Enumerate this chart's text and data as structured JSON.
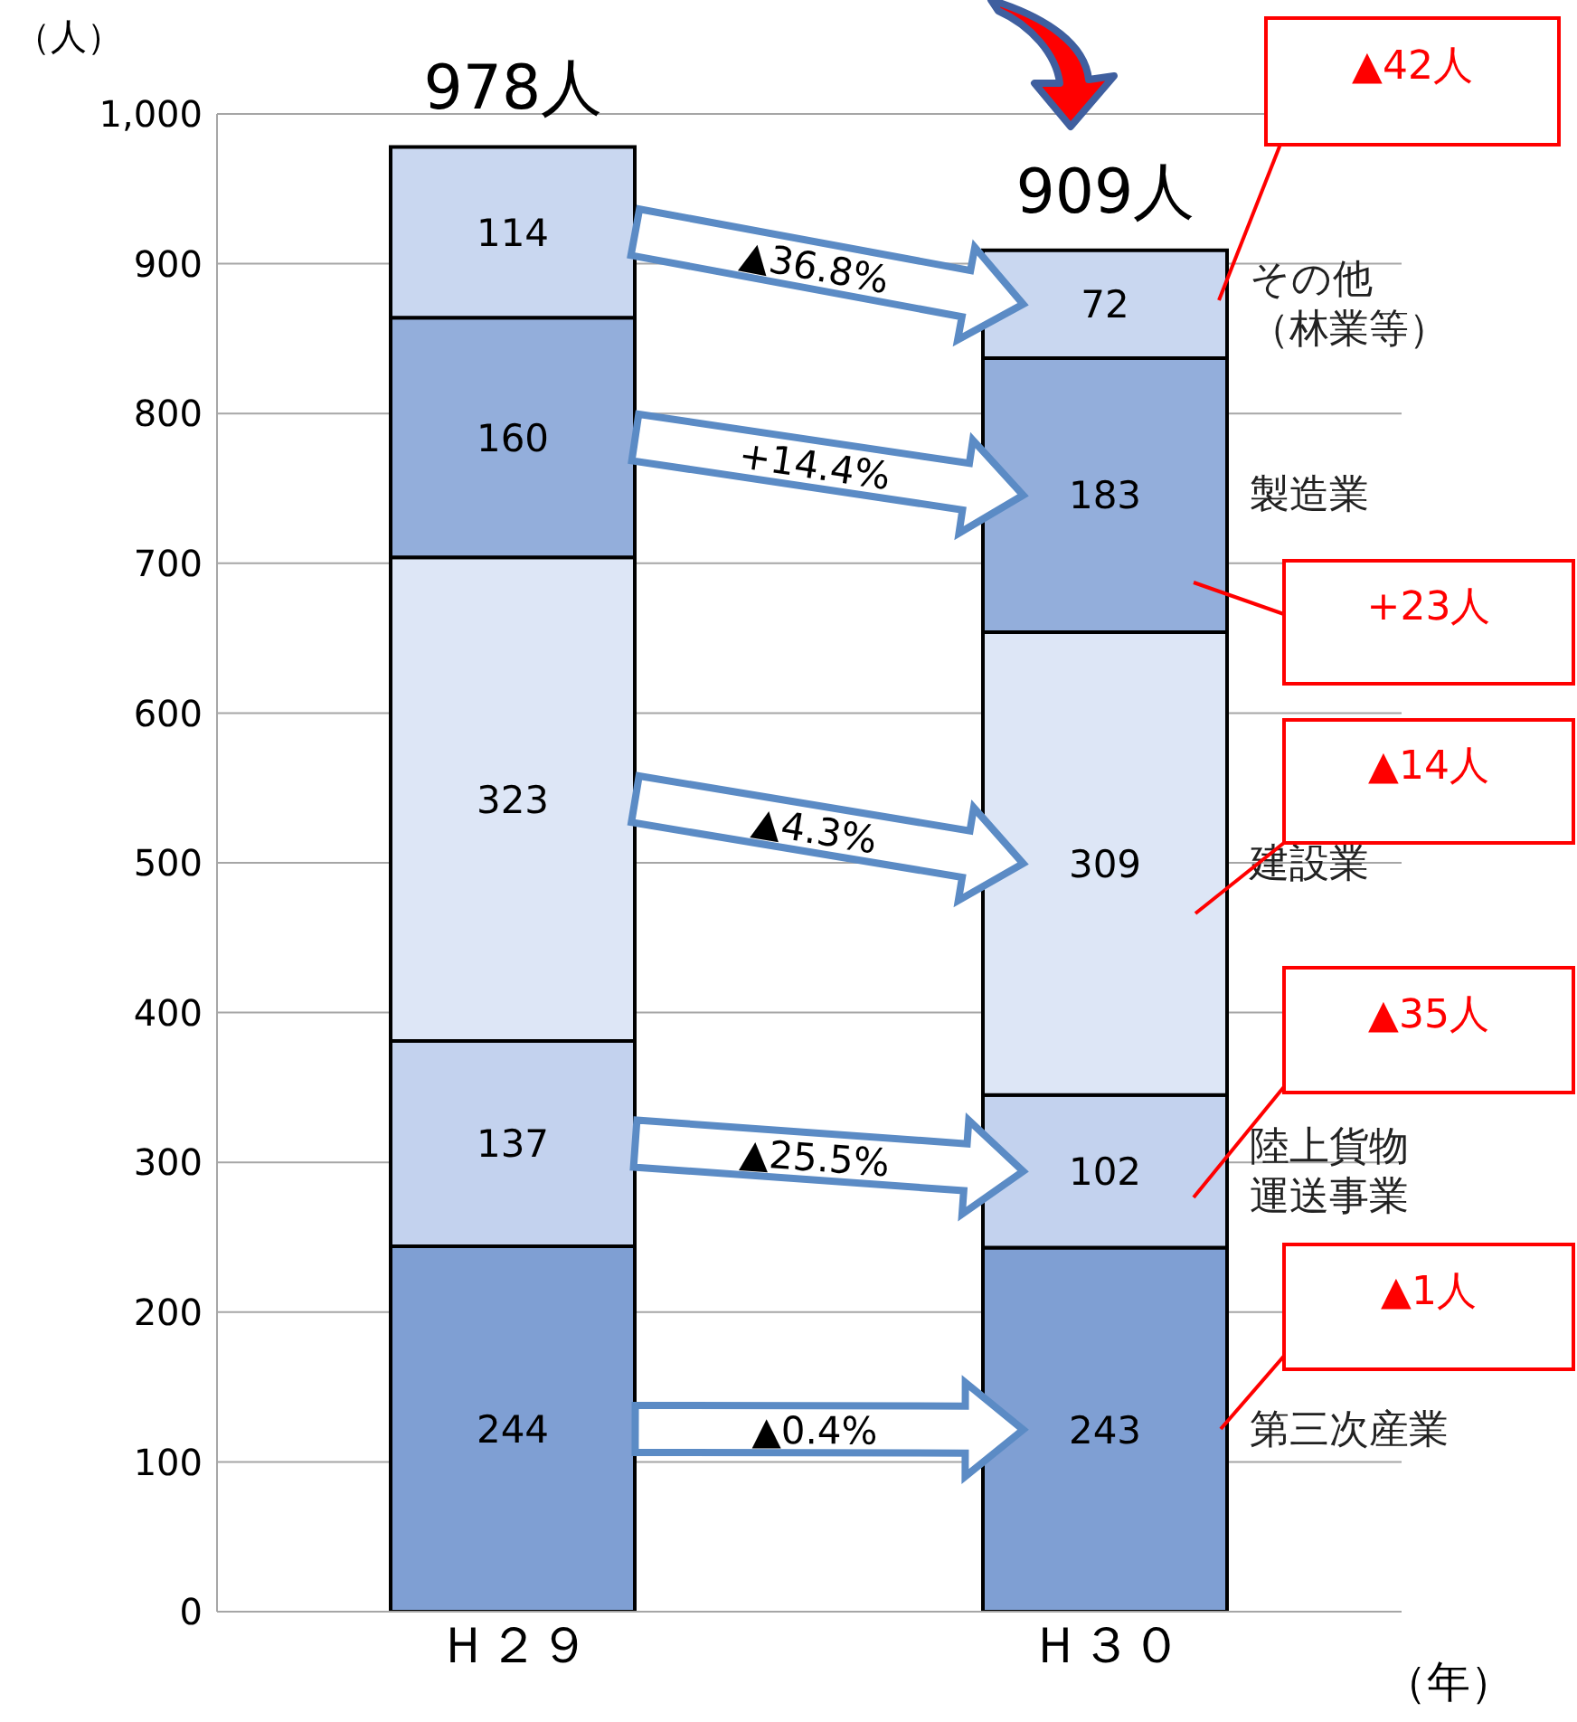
{
  "chart_data": {
    "type": "bar",
    "stacked": true,
    "categories": [
      "Ｈ２９",
      "Ｈ３０"
    ],
    "series": [
      {
        "name": "第三次産業",
        "color": "#7f9fd3",
        "values": [
          244,
          243
        ]
      },
      {
        "name": "陸上貨物運送事業",
        "color": "#c3d2ee",
        "values": [
          137,
          102
        ]
      },
      {
        "name": "建設業",
        "color": "#dde6f6",
        "values": [
          323,
          309
        ]
      },
      {
        "name": "製造業",
        "color": "#93aedb",
        "values": [
          160,
          183
        ]
      },
      {
        "name": "その他（林業等）",
        "color": "#c9d7f0",
        "values": [
          114,
          72
        ]
      }
    ],
    "ylim": [
      0,
      1000
    ],
    "yticks": [
      0,
      100,
      200,
      300,
      400,
      500,
      600,
      700,
      800,
      900,
      {
        "value": 1000,
        "label": "1,000"
      }
    ],
    "ylabel": "（人）",
    "xlabel": "（年）",
    "grid": "y",
    "legend": false,
    "data_labels": true,
    "totals": [
      "978人",
      "909人"
    ],
    "annotations": [
      "▲0.4%",
      "▲25.5%",
      "▲4.3%",
      "+14.4%",
      "▲36.8%",
      "▲42人",
      "+23人",
      "▲14人",
      "▲35人",
      "▲1人"
    ]
  }
}
